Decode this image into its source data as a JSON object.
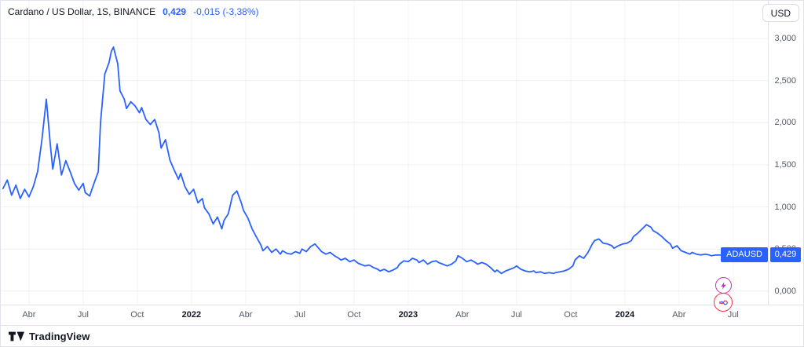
{
  "header": {
    "symbol_title": "Cardano / US Dollar, 1S, BINANCE",
    "price": "0,429",
    "change": "-0,015 (-3,38%)",
    "currency_button": "USD"
  },
  "axis_badge": {
    "symbol": "ADAUSD",
    "price": "0,429"
  },
  "footer": {
    "brand": "TradingView"
  },
  "colors": {
    "accent_blue": "#2962ff",
    "accent_magenta": "#c22cc9",
    "accent_red": "#f23645",
    "axis_text": "#555a64",
    "title_text": "#131722",
    "border": "#e0e3eb"
  },
  "chart_data": {
    "type": "line",
    "title": "Cardano / US Dollar",
    "symbol": "ADAUSD",
    "exchange": "BINANCE",
    "interval": "1S",
    "line_color": "#2962ff",
    "grid": true,
    "legend_position": "none",
    "xlim": [
      2021.12,
      2024.66
    ],
    "ylim": [
      -0.16,
      3.45
    ],
    "y_axis": {
      "ticks": [
        {
          "v": 3.0,
          "label": "3,000"
        },
        {
          "v": 2.5,
          "label": "2,500"
        },
        {
          "v": 2.0,
          "label": "2,000"
        },
        {
          "v": 1.5,
          "label": "1,500"
        },
        {
          "v": 1.0,
          "label": "1,000"
        },
        {
          "v": 0.5,
          "label": "0,500"
        },
        {
          "v": 0.0,
          "label": "0,000"
        }
      ]
    },
    "x_axis": {
      "ticks": [
        {
          "t": 2021.25,
          "label": "Abr"
        },
        {
          "t": 2021.5,
          "label": "Jul"
        },
        {
          "t": 2021.75,
          "label": "Oct"
        },
        {
          "t": 2022.0,
          "label": "2022",
          "major": true
        },
        {
          "t": 2022.25,
          "label": "Abr"
        },
        {
          "t": 2022.5,
          "label": "Jul"
        },
        {
          "t": 2022.75,
          "label": "Oct"
        },
        {
          "t": 2023.0,
          "label": "2023",
          "major": true
        },
        {
          "t": 2023.25,
          "label": "Abr"
        },
        {
          "t": 2023.5,
          "label": "Jul"
        },
        {
          "t": 2023.75,
          "label": "Oct"
        },
        {
          "t": 2024.0,
          "label": "2024",
          "major": true
        },
        {
          "t": 2024.25,
          "label": "Abr"
        },
        {
          "t": 2024.5,
          "label": "Jul"
        }
      ]
    },
    "last_price": 0.429,
    "points": [
      [
        2021.13,
        1.22
      ],
      [
        2021.15,
        1.32
      ],
      [
        2021.17,
        1.14
      ],
      [
        2021.19,
        1.26
      ],
      [
        2021.21,
        1.1
      ],
      [
        2021.23,
        1.21
      ],
      [
        2021.25,
        1.12
      ],
      [
        2021.27,
        1.24
      ],
      [
        2021.29,
        1.42
      ],
      [
        2021.31,
        1.8
      ],
      [
        2021.33,
        2.28
      ],
      [
        2021.35,
        1.7
      ],
      [
        2021.36,
        1.45
      ],
      [
        2021.38,
        1.75
      ],
      [
        2021.4,
        1.38
      ],
      [
        2021.42,
        1.55
      ],
      [
        2021.44,
        1.42
      ],
      [
        2021.46,
        1.28
      ],
      [
        2021.48,
        1.2
      ],
      [
        2021.5,
        1.28
      ],
      [
        2021.51,
        1.17
      ],
      [
        2021.53,
        1.13
      ],
      [
        2021.55,
        1.28
      ],
      [
        2021.57,
        1.42
      ],
      [
        2021.58,
        2.0
      ],
      [
        2021.6,
        2.58
      ],
      [
        2021.62,
        2.72
      ],
      [
        2021.63,
        2.85
      ],
      [
        2021.64,
        2.9
      ],
      [
        2021.66,
        2.7
      ],
      [
        2021.67,
        2.38
      ],
      [
        2021.69,
        2.28
      ],
      [
        2021.7,
        2.17
      ],
      [
        2021.72,
        2.25
      ],
      [
        2021.74,
        2.2
      ],
      [
        2021.76,
        2.12
      ],
      [
        2021.77,
        2.18
      ],
      [
        2021.79,
        2.04
      ],
      [
        2021.81,
        1.98
      ],
      [
        2021.83,
        2.04
      ],
      [
        2021.85,
        1.88
      ],
      [
        2021.86,
        1.7
      ],
      [
        2021.88,
        1.8
      ],
      [
        2021.9,
        1.56
      ],
      [
        2021.92,
        1.44
      ],
      [
        2021.94,
        1.33
      ],
      [
        2021.95,
        1.4
      ],
      [
        2021.97,
        1.24
      ],
      [
        2021.99,
        1.15
      ],
      [
        2022.01,
        1.21
      ],
      [
        2022.03,
        1.05
      ],
      [
        2022.05,
        1.1
      ],
      [
        2022.06,
        0.99
      ],
      [
        2022.08,
        0.92
      ],
      [
        2022.1,
        0.8
      ],
      [
        2022.12,
        0.88
      ],
      [
        2022.14,
        0.74
      ],
      [
        2022.15,
        0.84
      ],
      [
        2022.17,
        0.92
      ],
      [
        2022.19,
        1.14
      ],
      [
        2022.21,
        1.19
      ],
      [
        2022.23,
        1.05
      ],
      [
        2022.24,
        0.96
      ],
      [
        2022.26,
        0.87
      ],
      [
        2022.28,
        0.74
      ],
      [
        2022.3,
        0.64
      ],
      [
        2022.32,
        0.55
      ],
      [
        2022.33,
        0.48
      ],
      [
        2022.35,
        0.53
      ],
      [
        2022.37,
        0.46
      ],
      [
        2022.39,
        0.5
      ],
      [
        2022.41,
        0.44
      ],
      [
        2022.42,
        0.48
      ],
      [
        2022.44,
        0.45
      ],
      [
        2022.46,
        0.44
      ],
      [
        2022.48,
        0.47
      ],
      [
        2022.5,
        0.45
      ],
      [
        2022.51,
        0.5
      ],
      [
        2022.53,
        0.47
      ],
      [
        2022.55,
        0.53
      ],
      [
        2022.57,
        0.56
      ],
      [
        2022.59,
        0.5
      ],
      [
        2022.6,
        0.47
      ],
      [
        2022.62,
        0.44
      ],
      [
        2022.64,
        0.46
      ],
      [
        2022.66,
        0.42
      ],
      [
        2022.68,
        0.39
      ],
      [
        2022.69,
        0.37
      ],
      [
        2022.71,
        0.39
      ],
      [
        2022.73,
        0.35
      ],
      [
        2022.75,
        0.37
      ],
      [
        2022.77,
        0.33
      ],
      [
        2022.78,
        0.32
      ],
      [
        2022.8,
        0.3
      ],
      [
        2022.82,
        0.31
      ],
      [
        2022.84,
        0.28
      ],
      [
        2022.86,
        0.26
      ],
      [
        2022.87,
        0.24
      ],
      [
        2022.89,
        0.26
      ],
      [
        2022.91,
        0.23
      ],
      [
        2022.93,
        0.25
      ],
      [
        2022.95,
        0.28
      ],
      [
        2022.96,
        0.32
      ],
      [
        2022.98,
        0.36
      ],
      [
        2023.0,
        0.35
      ],
      [
        2023.02,
        0.39
      ],
      [
        2023.04,
        0.37
      ],
      [
        2023.05,
        0.34
      ],
      [
        2023.07,
        0.37
      ],
      [
        2023.09,
        0.32
      ],
      [
        2023.11,
        0.35
      ],
      [
        2023.13,
        0.36
      ],
      [
        2023.14,
        0.34
      ],
      [
        2023.16,
        0.32
      ],
      [
        2023.18,
        0.3
      ],
      [
        2023.2,
        0.32
      ],
      [
        2023.22,
        0.36
      ],
      [
        2023.23,
        0.42
      ],
      [
        2023.25,
        0.39
      ],
      [
        2023.27,
        0.35
      ],
      [
        2023.29,
        0.37
      ],
      [
        2023.31,
        0.34
      ],
      [
        2023.32,
        0.32
      ],
      [
        2023.34,
        0.34
      ],
      [
        2023.36,
        0.32
      ],
      [
        2023.38,
        0.28
      ],
      [
        2023.4,
        0.23
      ],
      [
        2023.41,
        0.25
      ],
      [
        2023.43,
        0.21
      ],
      [
        2023.45,
        0.24
      ],
      [
        2023.47,
        0.26
      ],
      [
        2023.49,
        0.28
      ],
      [
        2023.5,
        0.3
      ],
      [
        2023.52,
        0.26
      ],
      [
        2023.54,
        0.24
      ],
      [
        2023.56,
        0.23
      ],
      [
        2023.58,
        0.24
      ],
      [
        2023.59,
        0.22
      ],
      [
        2023.61,
        0.23
      ],
      [
        2023.63,
        0.21
      ],
      [
        2023.65,
        0.22
      ],
      [
        2023.67,
        0.21
      ],
      [
        2023.68,
        0.22
      ],
      [
        2023.7,
        0.23
      ],
      [
        2023.72,
        0.24
      ],
      [
        2023.74,
        0.26
      ],
      [
        2023.76,
        0.3
      ],
      [
        2023.77,
        0.37
      ],
      [
        2023.79,
        0.42
      ],
      [
        2023.81,
        0.39
      ],
      [
        2023.83,
        0.46
      ],
      [
        2023.85,
        0.56
      ],
      [
        2023.86,
        0.6
      ],
      [
        2023.88,
        0.62
      ],
      [
        2023.9,
        0.57
      ],
      [
        2023.92,
        0.56
      ],
      [
        2023.94,
        0.54
      ],
      [
        2023.95,
        0.51
      ],
      [
        2023.97,
        0.54
      ],
      [
        2023.99,
        0.56
      ],
      [
        2024.01,
        0.57
      ],
      [
        2024.03,
        0.6
      ],
      [
        2024.04,
        0.65
      ],
      [
        2024.06,
        0.69
      ],
      [
        2024.08,
        0.74
      ],
      [
        2024.1,
        0.79
      ],
      [
        2024.12,
        0.76
      ],
      [
        2024.13,
        0.72
      ],
      [
        2024.15,
        0.69
      ],
      [
        2024.17,
        0.65
      ],
      [
        2024.19,
        0.6
      ],
      [
        2024.21,
        0.56
      ],
      [
        2024.22,
        0.51
      ],
      [
        2024.24,
        0.54
      ],
      [
        2024.26,
        0.48
      ],
      [
        2024.28,
        0.46
      ],
      [
        2024.3,
        0.44
      ],
      [
        2024.31,
        0.46
      ],
      [
        2024.33,
        0.44
      ],
      [
        2024.35,
        0.43
      ],
      [
        2024.37,
        0.44
      ],
      [
        2024.39,
        0.43
      ],
      [
        2024.4,
        0.42
      ],
      [
        2024.42,
        0.43
      ],
      [
        2024.44,
        0.429
      ]
    ]
  }
}
